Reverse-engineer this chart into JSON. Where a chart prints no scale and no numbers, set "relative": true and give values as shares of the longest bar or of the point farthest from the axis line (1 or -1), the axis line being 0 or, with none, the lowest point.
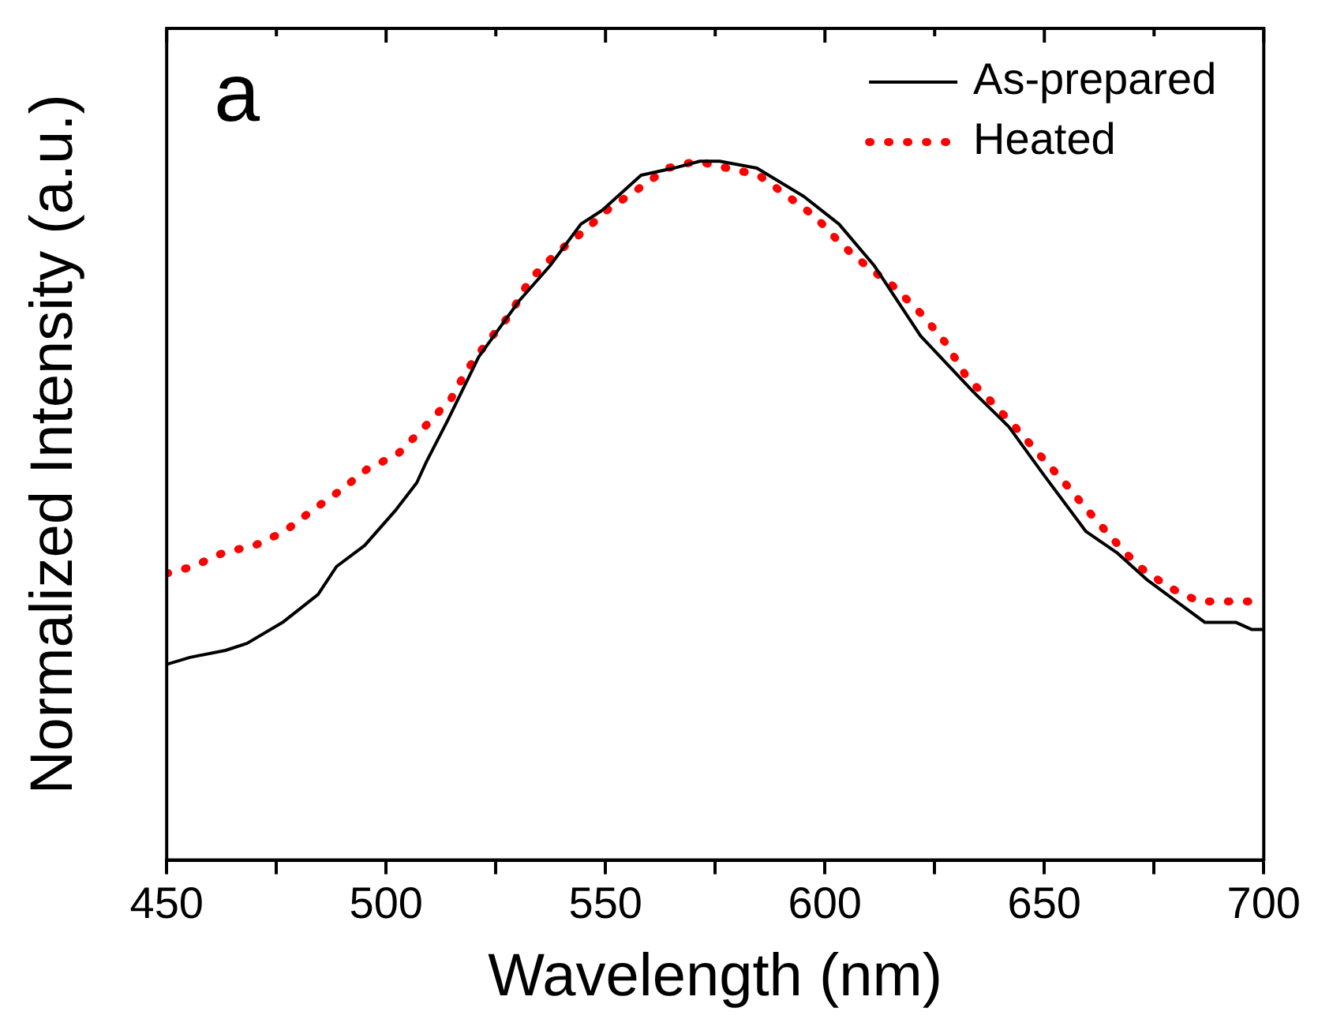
{
  "chart_data": {
    "type": "line",
    "relative": true,
    "xlabel": "Wavelength (nm)",
    "ylabel": "Normalized Intensity (a.u.)",
    "annotations": [
      "a"
    ],
    "legend": "top right",
    "marker": "none",
    "grid": false,
    "xlim": [
      450,
      700
    ],
    "xticks": [
      450,
      {
        "value": 475,
        "label": null
      },
      500,
      {
        "value": 525,
        "label": null
      },
      550,
      {
        "value": 575,
        "label": null
      },
      600,
      {
        "value": 625,
        "label": null
      },
      650,
      {
        "value": 675,
        "label": null
      },
      700
    ],
    "series": [
      {
        "name": "As-prepared",
        "color": "#000000",
        "line_style": "solid",
        "x": [
          450,
          455.3,
          463.4,
          468.3,
          476.4,
          484.5,
          488.7,
          495.1,
          502.1,
          507,
          509.2,
          514.1,
          521.1,
          530.3,
          537.3,
          544.4,
          549.3,
          558.1,
          565.5,
          571.5,
          576,
          584.5,
          595.1,
          603.2,
          611.3,
          621.8,
          633.8,
          641.9,
          650,
          659.5,
          666.5,
          673.6,
          686.6,
          693.7,
          697.2,
          700
        ],
        "values": [
          0.28,
          0.29,
          0.3,
          0.31,
          0.34,
          0.38,
          0.42,
          0.45,
          0.5,
          0.54,
          0.57,
          0.63,
          0.72,
          0.8,
          0.85,
          0.91,
          0.93,
          0.98,
          0.99,
          1,
          1,
          0.99,
          0.95,
          0.91,
          0.85,
          0.75,
          0.67,
          0.62,
          0.55,
          0.47,
          0.44,
          0.4,
          0.34,
          0.34,
          0.33,
          0.33
        ]
      },
      {
        "name": "Heated",
        "color": "#ff0000",
        "line_style": "dotted",
        "x": [
          450,
          456,
          463,
          470,
          476.8,
          483.1,
          489.8,
          495.8,
          502.5,
          508.8,
          514.8,
          518.3,
          522.9,
          528.2,
          532.7,
          539.1,
          545.1,
          550.4,
          557.4,
          564.1,
          570.8,
          577.8,
          584.9,
          591.5,
          597.9,
          603.9,
          609.5,
          615.8,
          622.2,
          627.5,
          632.4,
          637.3,
          643.3,
          648.9,
          654.6,
          659.9,
          665.5,
          671.5,
          678.5,
          685.2,
          692.3,
          700
        ],
        "values": [
          0.41,
          0.42,
          0.44,
          0.45,
          0.47,
          0.5,
          0.53,
          0.56,
          0.58,
          0.62,
          0.66,
          0.7,
          0.74,
          0.78,
          0.83,
          0.87,
          0.9,
          0.93,
          0.96,
          0.99,
          1,
          0.99,
          0.98,
          0.95,
          0.92,
          0.88,
          0.85,
          0.82,
          0.78,
          0.74,
          0.69,
          0.66,
          0.62,
          0.58,
          0.54,
          0.5,
          0.46,
          0.42,
          0.39,
          0.37,
          0.37,
          0.37
        ]
      }
    ]
  }
}
